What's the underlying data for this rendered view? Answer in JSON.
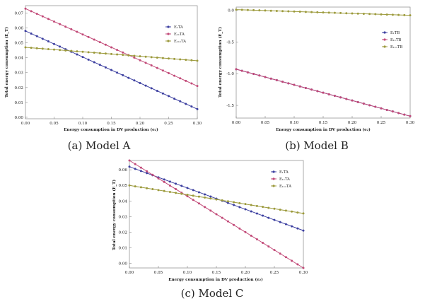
{
  "colors": {
    "blue": "#3c3fa0",
    "pink": "#c24a78",
    "olive": "#9c9a3c"
  },
  "chart_data": [
    {
      "type": "line",
      "panel": "A",
      "caption": "(a) Model A",
      "xlabel": "Energy consumption in DV production (e₂)",
      "ylabel": "Total energy consumption (E_T)",
      "xlim": [
        0,
        0.3
      ],
      "ylim": [
        -0.001,
        0.075
      ],
      "xticks": [
        "0.00",
        "0.05",
        "0.10",
        "0.15",
        "0.20",
        "0.25",
        "0.30"
      ],
      "xtick_values": [
        0,
        0.05,
        0.1,
        0.15,
        0.2,
        0.25,
        0.3
      ],
      "yticks": [
        "0.00",
        "0.01",
        "0.02",
        "0.03",
        "0.04",
        "0.05",
        "0.06",
        "0.07"
      ],
      "ytick_values": [
        0,
        0.01,
        0.02,
        0.03,
        0.04,
        0.05,
        0.06,
        0.07
      ],
      "legend_position": "top-right",
      "series": [
        {
          "name": "E₁TA",
          "color": "blue",
          "values": [
            0.058,
            0.0055
          ]
        },
        {
          "name": "E₁₁TA",
          "color": "pink",
          "values": [
            0.073,
            0.021
          ]
        },
        {
          "name": "E₁₁₁TA",
          "color": "olive",
          "values": [
            0.047,
            0.038
          ]
        }
      ]
    },
    {
      "type": "line",
      "panel": "B",
      "caption": "(b) Model B",
      "xlabel": "Energy consumption in DV production (e₂)",
      "ylabel": "Total energy consumption (E_T)",
      "xlim": [
        0,
        0.3
      ],
      "ylim": [
        -1.7,
        0.05
      ],
      "xticks": [
        "0.00",
        "0.05",
        "0.10",
        "0.15",
        "0.20",
        "0.25",
        "0.30"
      ],
      "xtick_values": [
        0,
        0.05,
        0.1,
        0.15,
        0.2,
        0.25,
        0.3
      ],
      "yticks": [
        "0.0",
        "-0.5",
        "-1.0",
        "-1.5"
      ],
      "ytick_values": [
        0,
        -0.5,
        -1.0,
        -1.5
      ],
      "legend_position": "top-right",
      "series": [
        {
          "name": "E₁TB",
          "color": "blue",
          "values": [
            -0.93,
            -1.67
          ]
        },
        {
          "name": "E₁₁TB",
          "color": "pink",
          "values": [
            -0.93,
            -1.67
          ]
        },
        {
          "name": "E₁₁₁TB",
          "color": "olive",
          "values": [
            0.01,
            -0.08
          ]
        }
      ]
    },
    {
      "type": "line",
      "panel": "C",
      "caption": "(c) Model C",
      "xlabel": "Energy consumption in DV production (e₂)",
      "ylabel": "Total energy consumption (E_T)",
      "xlim": [
        0,
        0.3
      ],
      "ylim": [
        -0.003,
        0.066
      ],
      "xticks": [
        "0.00",
        "0.05",
        "0.10",
        "0.15",
        "0.20",
        "0.25",
        "0.30"
      ],
      "xtick_values": [
        0,
        0.05,
        0.1,
        0.15,
        0.2,
        0.25,
        0.3
      ],
      "yticks": [
        "0.00",
        "0.01",
        "0.02",
        "0.03",
        "0.04",
        "0.05",
        "0.06"
      ],
      "ytick_values": [
        0,
        0.01,
        0.02,
        0.03,
        0.04,
        0.05,
        0.06
      ],
      "legend_position": "top-right",
      "series": [
        {
          "name": "E₁TA",
          "color": "blue",
          "values": [
            0.062,
            0.021
          ]
        },
        {
          "name": "E₁₁TA",
          "color": "pink",
          "values": [
            0.066,
            -0.003
          ]
        },
        {
          "name": "E₁₁₁TA",
          "color": "olive",
          "values": [
            0.05,
            0.032
          ]
        }
      ]
    }
  ]
}
